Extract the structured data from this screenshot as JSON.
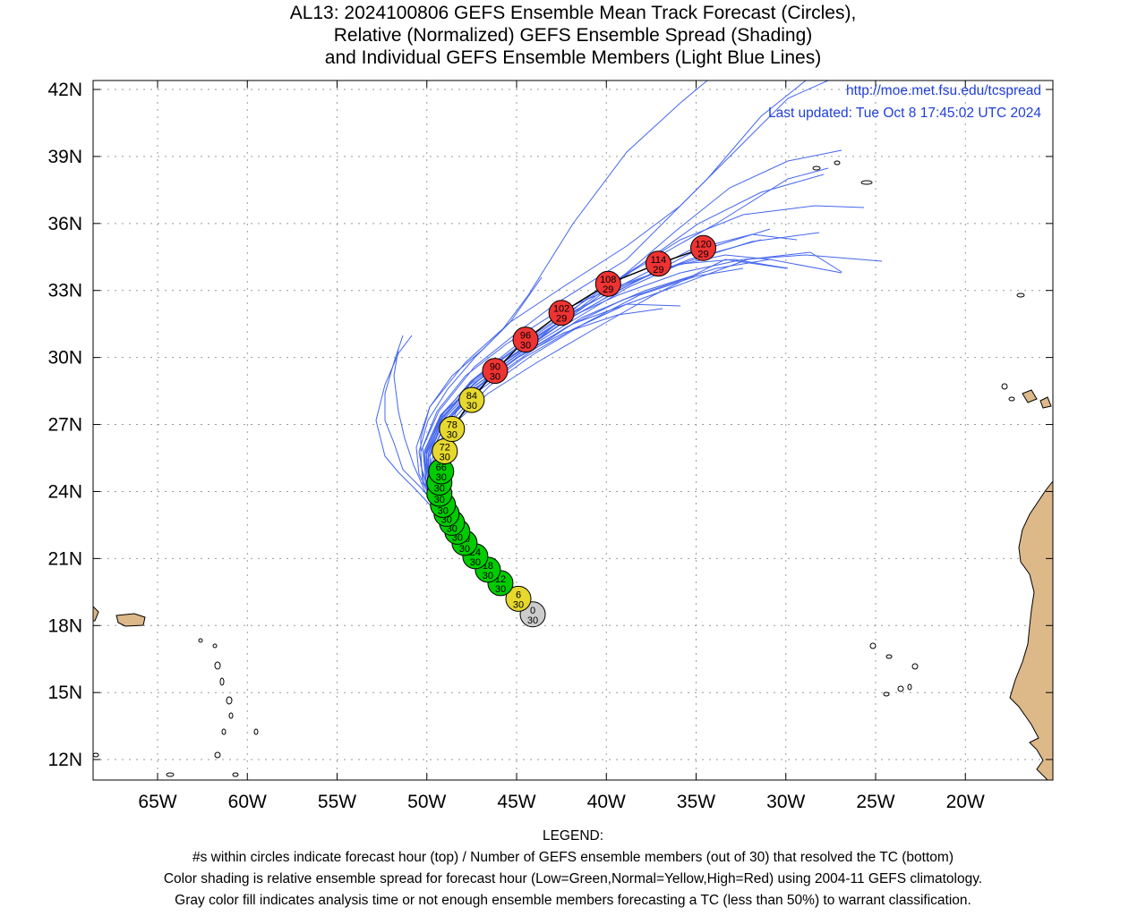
{
  "title": {
    "line1": "AL13: 2024100806 GEFS Ensemble Mean Track Forecast (Circles),",
    "line2": "Relative (Normalized) GEFS Ensemble Spread (Shading)",
    "line3": "and Individual GEFS Ensemble Members (Light Blue Lines)"
  },
  "info": {
    "url": "http://moe.met.fsu.edu/tcspread",
    "updated": "Last updated: Tue Oct 8 17:45:02 UTC 2024"
  },
  "axes": {
    "lat_labels": [
      "42N",
      "39N",
      "36N",
      "33N",
      "30N",
      "27N",
      "24N",
      "21N",
      "18N",
      "15N",
      "12N"
    ],
    "lon_labels": [
      "65W",
      "60W",
      "55W",
      "50W",
      "45W",
      "40W",
      "35W",
      "30W",
      "25W",
      "20W"
    ]
  },
  "legend": {
    "heading": "LEGEND:",
    "line1": "#s within circles indicate forecast hour (top) / Number of GEFS ensemble members (out of 30) that resolved the TC (bottom)",
    "line2": "Color shading is relative ensemble spread for forecast hour (Low=Green,Normal=Yellow,High=Red) using 2004-11 GEFS climatology.",
    "line3": "Gray color fill indicates analysis time or not enough ensemble members forecasting a TC (less than 50%) to warrant classification."
  },
  "colors": {
    "green": "#00cc00",
    "yellow": "#e6d82e",
    "red": "#ee3333",
    "gray": "#cccccc",
    "member": "#4466ee",
    "land": "#ddb888"
  },
  "track": [
    {
      "hour": "0",
      "members": "30",
      "lat": 18.5,
      "lon": -44.1,
      "color": "gray"
    },
    {
      "hour": "6",
      "members": "30",
      "lat": 19.2,
      "lon": -44.9,
      "color": "yellow"
    },
    {
      "hour": "12",
      "members": "30",
      "lat": 19.9,
      "lon": -45.9,
      "color": "green"
    },
    {
      "hour": "18",
      "members": "30",
      "lat": 20.5,
      "lon": -46.6,
      "color": "green"
    },
    {
      "hour": "24",
      "members": "30",
      "lat": 21.1,
      "lon": -47.3,
      "color": "green"
    },
    {
      "hour": "30",
      "members": "30",
      "lat": 21.7,
      "lon": -47.9,
      "color": "green"
    },
    {
      "hour": "36",
      "members": "30",
      "lat": 22.2,
      "lon": -48.3,
      "color": "green"
    },
    {
      "hour": "42",
      "members": "30",
      "lat": 22.6,
      "lon": -48.6,
      "color": "green"
    },
    {
      "hour": "48",
      "members": "30",
      "lat": 23.0,
      "lon": -48.9,
      "color": "green"
    },
    {
      "hour": "54",
      "members": "30",
      "lat": 23.4,
      "lon": -49.1,
      "color": "green"
    },
    {
      "hour": "60",
      "members": "30",
      "lat": 23.9,
      "lon": -49.3,
      "color": "green"
    },
    {
      "hour": "66",
      "members": "30",
      "lat": 24.4,
      "lon": -49.3,
      "color": "green"
    },
    {
      "hour": "66",
      "members": "30",
      "lat": 24.9,
      "lon": -49.2,
      "color": "green"
    },
    {
      "hour": "72",
      "members": "30",
      "lat": 25.8,
      "lon": -49.0,
      "color": "yellow"
    },
    {
      "hour": "78",
      "members": "30",
      "lat": 26.8,
      "lon": -48.6,
      "color": "yellow"
    },
    {
      "hour": "84",
      "members": "30",
      "lat": 28.1,
      "lon": -47.5,
      "color": "yellow"
    },
    {
      "hour": "90",
      "members": "30",
      "lat": 29.4,
      "lon": -46.2,
      "color": "red"
    },
    {
      "hour": "96",
      "members": "30",
      "lat": 30.8,
      "lon": -44.5,
      "color": "red"
    },
    {
      "hour": "102",
      "members": "29",
      "lat": 32.0,
      "lon": -42.5,
      "color": "red"
    },
    {
      "hour": "108",
      "members": "29",
      "lat": 33.3,
      "lon": -39.9,
      "color": "red"
    },
    {
      "hour": "114",
      "members": "29",
      "lat": 34.2,
      "lon": -37.1,
      "color": "red"
    },
    {
      "hour": "120",
      "members": "29",
      "lat": 34.9,
      "lon": -34.6,
      "color": "red"
    }
  ]
}
